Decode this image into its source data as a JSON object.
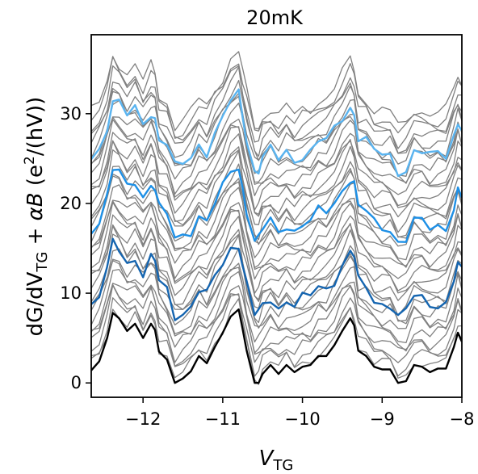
{
  "chart_data": {
    "type": "line",
    "title": "20mK",
    "xlabel": {
      "main": "V",
      "sub": "TG"
    },
    "ylabel": {
      "p1": "dG/dV",
      "sub": "TG",
      "p2": " + ",
      "alpha": "α",
      "bvar": "B",
      "p3": " (e",
      "sup": "2",
      "p4": "/(hV))"
    },
    "xlim": [
      -12.65,
      -8.0
    ],
    "ylim": [
      -1.6,
      38.8
    ],
    "xticks": [
      {
        "value": -12,
        "label": "−12"
      },
      {
        "value": -11,
        "label": "−11"
      },
      {
        "value": -10,
        "label": "−10"
      },
      {
        "value": -9,
        "label": "−9"
      },
      {
        "value": -8,
        "label": "−8"
      }
    ],
    "yticks": [
      {
        "value": 0,
        "label": "0"
      },
      {
        "value": 10,
        "label": "10"
      },
      {
        "value": 20,
        "label": "20"
      },
      {
        "value": 30,
        "label": "30"
      }
    ],
    "grid": false,
    "legend": "none",
    "colors": {
      "gray": "#808080",
      "black": "#000000",
      "dark_blue": "#1565b0",
      "mid_blue": "#1e90e6",
      "light_blue": "#5ab4f0"
    },
    "trace_count": 34,
    "offset_step": 0.85,
    "base": {
      "x": [
        -12.65,
        -12.55,
        -12.45,
        -12.38,
        -12.3,
        -12.2,
        -12.1,
        -12.0,
        -11.9,
        -11.85,
        -11.8,
        -11.7,
        -11.6,
        -11.5,
        -11.4,
        -11.3,
        -11.2,
        -11.1,
        -11.0,
        -10.9,
        -10.8,
        -10.75,
        -10.7,
        -10.6,
        -10.55,
        -10.5,
        -10.4,
        -10.3,
        -10.2,
        -10.1,
        -10.0,
        -9.9,
        -9.8,
        -9.7,
        -9.6,
        -9.5,
        -9.4,
        -9.35,
        -9.3,
        -9.2,
        -9.1,
        -9.0,
        -8.9,
        -8.8,
        -8.7,
        -8.6,
        -8.5,
        -8.4,
        -8.3,
        -8.2,
        -8.1,
        -8.05,
        -8.0
      ],
      "y": [
        1.4,
        2.4,
        5.0,
        7.8,
        7.2,
        5.8,
        6.6,
        5.0,
        6.6,
        5.9,
        3.5,
        2.6,
        0.0,
        0.5,
        1.3,
        3.0,
        2.2,
        4.0,
        5.6,
        7.4,
        8.2,
        6.0,
        3.6,
        0.0,
        0.0,
        1.0,
        2.0,
        1.0,
        2.0,
        1.2,
        1.8,
        2.0,
        3.0,
        3.0,
        4.2,
        5.8,
        7.2,
        6.4,
        3.6,
        3.0,
        1.8,
        1.5,
        1.5,
        0.0,
        0.2,
        2.0,
        1.8,
        1.2,
        1.6,
        1.6,
        4.0,
        5.6,
        4.6
      ]
    },
    "series": [
      {
        "name": "",
        "offset": 0.0,
        "color": "#000000"
      },
      {
        "name": "",
        "offset": 7.5,
        "color": "#1565b0"
      },
      {
        "name": "",
        "offset": 15.9,
        "color": "#1e90e6"
      },
      {
        "name": "",
        "offset": 23.8,
        "color": "#5ab4f0"
      }
    ]
  }
}
